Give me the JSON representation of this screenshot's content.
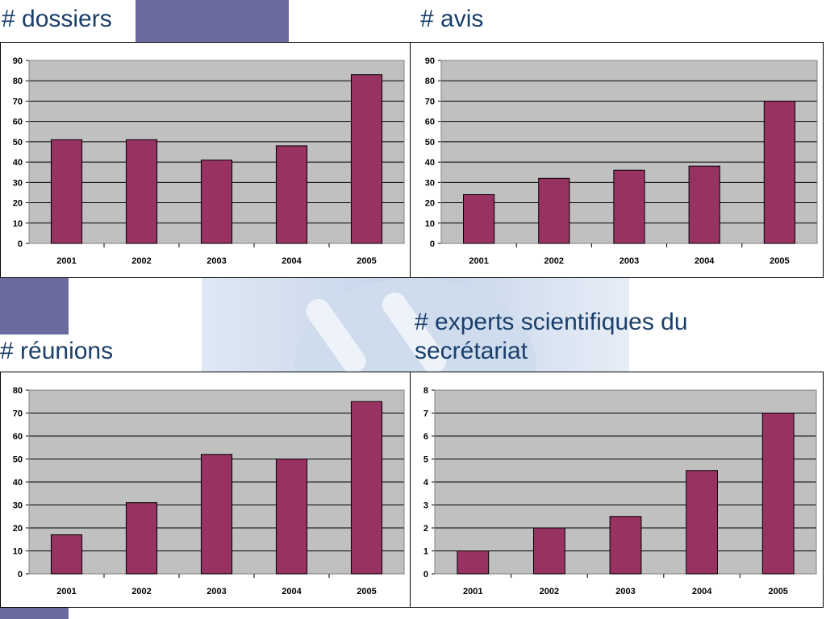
{
  "colors": {
    "bar": "#983263",
    "plot_bg": "#c0c0c0",
    "title": "#1a3f6b",
    "deco": "#6a6a9c"
  },
  "panels": [
    {
      "title": "# dossiers"
    },
    {
      "title": "# avis"
    },
    {
      "title": "# réunions"
    },
    {
      "title": "# experts scientifiques du secrétariat"
    }
  ],
  "chart_data": [
    {
      "type": "bar",
      "title": "# dossiers",
      "categories": [
        "2001",
        "2002",
        "2003",
        "2004",
        "2005"
      ],
      "values": [
        51,
        51,
        41,
        48,
        83
      ],
      "ylim": [
        0,
        90
      ],
      "yticks": [
        0,
        10,
        20,
        30,
        40,
        50,
        60,
        70,
        80,
        90
      ],
      "grid": true
    },
    {
      "type": "bar",
      "title": "# avis",
      "categories": [
        "2001",
        "2002",
        "2003",
        "2004",
        "2005"
      ],
      "values": [
        24,
        32,
        36,
        38,
        70
      ],
      "ylim": [
        0,
        90
      ],
      "yticks": [
        0,
        10,
        20,
        30,
        40,
        50,
        60,
        70,
        80,
        90
      ],
      "grid": true
    },
    {
      "type": "bar",
      "title": "# réunions",
      "categories": [
        "2001",
        "2002",
        "2003",
        "2004",
        "2005"
      ],
      "values": [
        17,
        31,
        52,
        50,
        75
      ],
      "ylim": [
        0,
        80
      ],
      "yticks": [
        0,
        10,
        20,
        30,
        40,
        50,
        60,
        70,
        80
      ],
      "grid": true
    },
    {
      "type": "bar",
      "title": "# experts scientifiques du secrétariat",
      "categories": [
        "2001",
        "2002",
        "2003",
        "2004",
        "2005"
      ],
      "values": [
        1,
        2,
        2.5,
        4.5,
        7
      ],
      "ylim": [
        0,
        8
      ],
      "yticks": [
        0,
        1,
        2,
        3,
        4,
        5,
        6,
        7,
        8
      ],
      "grid": true
    }
  ]
}
